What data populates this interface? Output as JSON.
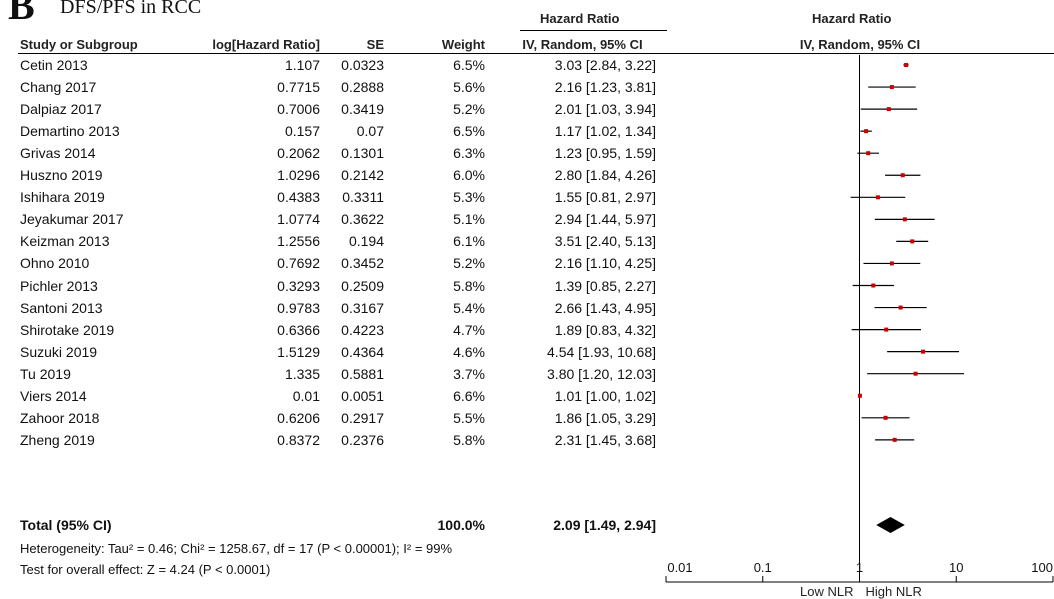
{
  "panel_letter": "B",
  "figure_title": "DFS/PFS in RCC",
  "columns": {
    "group_header_left": "Hazard Ratio",
    "group_header_right": "Hazard Ratio",
    "study": "Study or Subgroup",
    "log_hr": "log[Hazard Ratio]",
    "se": "SE",
    "weight": "Weight",
    "ci": "IV, Random, 95% CI",
    "plot_ci": "IV, Random, 95% CI"
  },
  "rows": [
    {
      "study": "Cetin 2013",
      "log_hr": "1.107",
      "se": "0.0323",
      "weight": "6.5%",
      "ci_text": "3.03 [2.84, 3.22]"
    },
    {
      "study": "Chang 2017",
      "log_hr": "0.7715",
      "se": "0.2888",
      "weight": "5.6%",
      "ci_text": "2.16 [1.23, 3.81]"
    },
    {
      "study": "Dalpiaz 2017",
      "log_hr": "0.7006",
      "se": "0.3419",
      "weight": "5.2%",
      "ci_text": "2.01 [1.03, 3.94]"
    },
    {
      "study": "Demartino 2013",
      "log_hr": "0.157",
      "se": "0.07",
      "weight": "6.5%",
      "ci_text": "1.17 [1.02, 1.34]"
    },
    {
      "study": "Grivas 2014",
      "log_hr": "0.2062",
      "se": "0.1301",
      "weight": "6.3%",
      "ci_text": "1.23 [0.95, 1.59]"
    },
    {
      "study": "Huszno 2019",
      "log_hr": "1.0296",
      "se": "0.2142",
      "weight": "6.0%",
      "ci_text": "2.80 [1.84, 4.26]"
    },
    {
      "study": "Ishihara 2019",
      "log_hr": "0.4383",
      "se": "0.3311",
      "weight": "5.3%",
      "ci_text": "1.55 [0.81, 2.97]"
    },
    {
      "study": "Jeyakumar 2017",
      "log_hr": "1.0774",
      "se": "0.3622",
      "weight": "5.1%",
      "ci_text": "2.94 [1.44, 5.97]"
    },
    {
      "study": "Keizman 2013",
      "log_hr": "1.2556",
      "se": "0.194",
      "weight": "6.1%",
      "ci_text": "3.51 [2.40, 5.13]"
    },
    {
      "study": "Ohno 2010",
      "log_hr": "0.7692",
      "se": "0.3452",
      "weight": "5.2%",
      "ci_text": "2.16 [1.10, 4.25]"
    },
    {
      "study": "Pichler 2013",
      "log_hr": "0.3293",
      "se": "0.2509",
      "weight": "5.8%",
      "ci_text": "1.39 [0.85, 2.27]"
    },
    {
      "study": "Santoni 2013",
      "log_hr": "0.9783",
      "se": "0.3167",
      "weight": "5.4%",
      "ci_text": "2.66 [1.43, 4.95]"
    },
    {
      "study": "Shirotake 2019",
      "log_hr": "0.6366",
      "se": "0.4223",
      "weight": "4.7%",
      "ci_text": "1.89 [0.83, 4.32]"
    },
    {
      "study": "Suzuki 2019",
      "log_hr": "1.5129",
      "se": "0.4364",
      "weight": "4.6%",
      "ci_text": "4.54 [1.93, 10.68]"
    },
    {
      "study": "Tu 2019",
      "log_hr": "1.335",
      "se": "0.5881",
      "weight": "3.7%",
      "ci_text": "3.80 [1.20, 12.03]"
    },
    {
      "study": "Viers 2014",
      "log_hr": "0.01",
      "se": "0.0051",
      "weight": "6.6%",
      "ci_text": "1.01 [1.00, 1.02]"
    },
    {
      "study": "Zahoor 2018",
      "log_hr": "0.6206",
      "se": "0.2917",
      "weight": "5.5%",
      "ci_text": "1.86 [1.05, 3.29]"
    },
    {
      "study": "Zheng 2019",
      "log_hr": "0.8372",
      "se": "0.2376",
      "weight": "5.8%",
      "ci_text": "2.31 [1.45, 3.68]"
    }
  ],
  "total": {
    "label": "Total (95% CI)",
    "weight": "100.0%",
    "ci_text": "2.09 [1.49, 2.94]"
  },
  "heterogeneity": "Heterogeneity: Tau² = 0.46; Chi² = 1258.67, df = 17 (P < 0.00001); I² = 99%",
  "overall_effect": "Test for overall effect: Z = 4.24 (P < 0.0001)",
  "axis_left_label": "Low NLR",
  "axis_right_label": "High NLR",
  "colors": {
    "point": "#cc0000",
    "line": "#000000",
    "diamond": "#000000"
  },
  "chart_data": {
    "type": "forest",
    "scale": "log",
    "xlim": [
      0.01,
      100
    ],
    "xticks": [
      0.01,
      0.1,
      1,
      10,
      100
    ],
    "xtick_labels": [
      "0.01",
      "0.1",
      "1",
      "10",
      "100"
    ],
    "reference_line": 1,
    "studies": [
      {
        "label": "Cetin 2013",
        "hr": 3.03,
        "lo": 2.84,
        "hi": 3.22
      },
      {
        "label": "Chang 2017",
        "hr": 2.16,
        "lo": 1.23,
        "hi": 3.81
      },
      {
        "label": "Dalpiaz 2017",
        "hr": 2.01,
        "lo": 1.03,
        "hi": 3.94
      },
      {
        "label": "Demartino 2013",
        "hr": 1.17,
        "lo": 1.02,
        "hi": 1.34
      },
      {
        "label": "Grivas 2014",
        "hr": 1.23,
        "lo": 0.95,
        "hi": 1.59
      },
      {
        "label": "Huszno 2019",
        "hr": 2.8,
        "lo": 1.84,
        "hi": 4.26
      },
      {
        "label": "Ishihara 2019",
        "hr": 1.55,
        "lo": 0.81,
        "hi": 2.97
      },
      {
        "label": "Jeyakumar 2017",
        "hr": 2.94,
        "lo": 1.44,
        "hi": 5.97
      },
      {
        "label": "Keizman 2013",
        "hr": 3.51,
        "lo": 2.4,
        "hi": 5.13
      },
      {
        "label": "Ohno 2010",
        "hr": 2.16,
        "lo": 1.1,
        "hi": 4.25
      },
      {
        "label": "Pichler 2013",
        "hr": 1.39,
        "lo": 0.85,
        "hi": 2.27
      },
      {
        "label": "Santoni 2013",
        "hr": 2.66,
        "lo": 1.43,
        "hi": 4.95
      },
      {
        "label": "Shirotake 2019",
        "hr": 1.89,
        "lo": 0.83,
        "hi": 4.32
      },
      {
        "label": "Suzuki 2019",
        "hr": 4.54,
        "lo": 1.93,
        "hi": 10.68
      },
      {
        "label": "Tu 2019",
        "hr": 3.8,
        "lo": 1.2,
        "hi": 12.03
      },
      {
        "label": "Viers 2014",
        "hr": 1.01,
        "lo": 1.0,
        "hi": 1.02
      },
      {
        "label": "Zahoor 2018",
        "hr": 1.86,
        "lo": 1.05,
        "hi": 3.29
      },
      {
        "label": "Zheng 2019",
        "hr": 2.31,
        "lo": 1.45,
        "hi": 3.68
      }
    ],
    "pooled": {
      "label": "Total (95% CI)",
      "hr": 2.09,
      "lo": 1.49,
      "hi": 2.94
    }
  }
}
